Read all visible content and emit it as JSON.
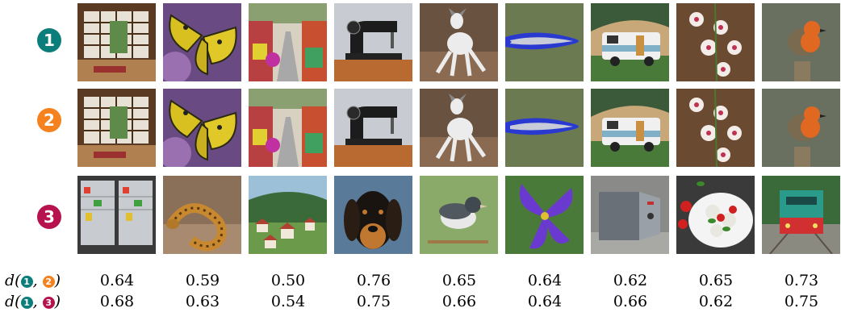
{
  "rows": [
    {
      "badge": "1",
      "color": "#0b7d7a"
    },
    {
      "badge": "2",
      "color": "#f5821f"
    },
    {
      "badge": "3",
      "color": "#b5124e"
    }
  ],
  "images": {
    "row1": [
      "japanese-room",
      "butterfly",
      "market-street",
      "sewing-machine",
      "whippet-dog",
      "fish",
      "camper-van",
      "orchids",
      "robin"
    ],
    "row2": [
      "japanese-room",
      "butterfly",
      "market-street",
      "sewing-machine",
      "whippet-dog",
      "fish",
      "camper-van",
      "orchids",
      "robin"
    ],
    "row3": [
      "refrigerator",
      "snake",
      "village",
      "hound-dog",
      "junco-bird",
      "purple-iris",
      "safe",
      "caprese-salad",
      "train"
    ]
  },
  "metrics": [
    {
      "label_prefix": "d(",
      "a": "1",
      "sep": ", ",
      "b": "2",
      "label_suffix": ")",
      "values": [
        "0.64",
        "0.59",
        "0.50",
        "0.76",
        "0.65",
        "0.64",
        "0.62",
        "0.65",
        "0.73"
      ]
    },
    {
      "label_prefix": "d(",
      "a": "1",
      "sep": ", ",
      "b": "3",
      "label_suffix": ")",
      "values": [
        "0.68",
        "0.63",
        "0.54",
        "0.75",
        "0.66",
        "0.64",
        "0.66",
        "0.62",
        "0.75"
      ]
    }
  ]
}
